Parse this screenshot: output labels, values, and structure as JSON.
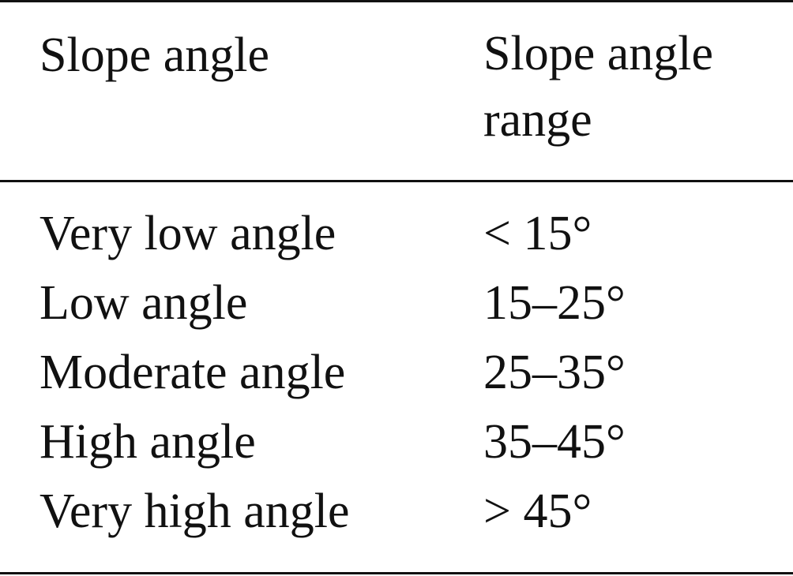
{
  "table": {
    "header": [
      "Slope angle",
      "Slope angle range"
    ],
    "rows": [
      [
        "Very low angle",
        "< 15°"
      ],
      [
        "Low angle",
        "15–25°"
      ],
      [
        "Moderate angle",
        "25–35°"
      ],
      [
        "High angle",
        "35–45°"
      ],
      [
        "Very high angle",
        "> 45°"
      ]
    ]
  }
}
